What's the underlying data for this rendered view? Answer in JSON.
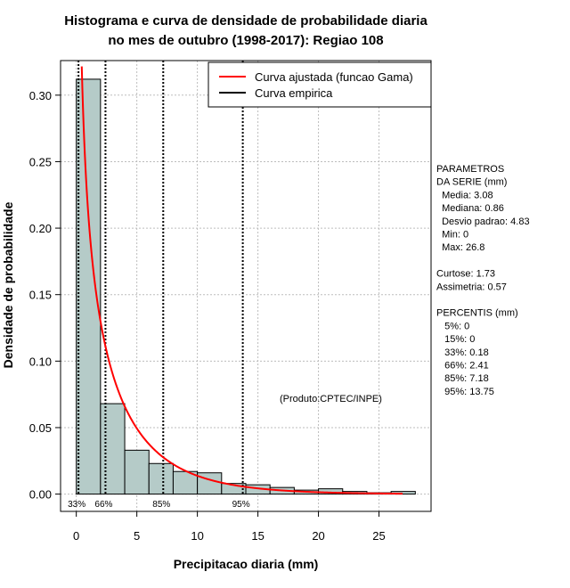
{
  "chart_data": {
    "type": "bar",
    "title": [
      "Histograma e curva de densidade de probabilidade diaria",
      "no mes de outubro (1998-2017): Regiao 108"
    ],
    "xlabel": "Precipitacao diaria (mm)",
    "ylabel": "Densidade de probabilidade",
    "xlim": [
      -1.3,
      29.3
    ],
    "ylim": [
      -0.013,
      0.326
    ],
    "xticks": [
      0,
      5,
      10,
      15,
      20,
      25
    ],
    "yticks": [
      0.0,
      0.05,
      0.1,
      0.15,
      0.2,
      0.25,
      0.3
    ],
    "ytick_labels": [
      "0.00",
      "0.05",
      "0.10",
      "0.15",
      "0.20",
      "0.25",
      "0.30"
    ],
    "grid": true,
    "bin_width": 2,
    "bins": [
      {
        "start": 0,
        "end": 2,
        "density": 0.312
      },
      {
        "start": 2,
        "end": 4,
        "density": 0.068
      },
      {
        "start": 4,
        "end": 6,
        "density": 0.033
      },
      {
        "start": 6,
        "end": 8,
        "density": 0.023
      },
      {
        "start": 8,
        "end": 10,
        "density": 0.017
      },
      {
        "start": 10,
        "end": 12,
        "density": 0.016
      },
      {
        "start": 12,
        "end": 14,
        "density": 0.008
      },
      {
        "start": 14,
        "end": 16,
        "density": 0.007
      },
      {
        "start": 16,
        "end": 18,
        "density": 0.005
      },
      {
        "start": 18,
        "end": 20,
        "density": 0.003
      },
      {
        "start": 20,
        "end": 22,
        "density": 0.004
      },
      {
        "start": 22,
        "end": 24,
        "density": 0.002
      },
      {
        "start": 24,
        "end": 26,
        "density": 0.001
      },
      {
        "start": 26,
        "end": 28,
        "density": 0.002
      }
    ],
    "fitted_curve": {
      "name": "Curva ajustada (funcao Gama)",
      "color": "#ff0000",
      "gamma_shape": 0.6,
      "gamma_rate": 0.2,
      "x_range": [
        0.1,
        27
      ]
    },
    "empirical_curve": {
      "name": "Curva empirica",
      "color": "#000000"
    },
    "bar_fill": "#b5cbc8",
    "percentile_lines": [
      {
        "label": "33%",
        "value": 0.18
      },
      {
        "label": "66%",
        "value": 2.41
      },
      {
        "label": "85%",
        "value": 7.18
      },
      {
        "label": "95%",
        "value": 13.75
      }
    ],
    "legend_position": "top-right",
    "annotation": "(Produto:CPTEC/INPE)"
  },
  "side_panel": {
    "lines": [
      "PARAMETROS",
      "DA SERIE (mm)",
      "  Media: 3.08",
      "  Mediana: 0.86",
      "  Desvio padrao: 4.83",
      "  Min: 0",
      "  Max: 26.8",
      "",
      "Curtose: 1.73",
      "Assimetria: 0.57",
      "",
      "PERCENTIS (mm)",
      "   5%: 0",
      "   15%: 0",
      "   33%: 0.18",
      "   66%: 2.41",
      "   85%: 7.18",
      "   95%: 13.75"
    ]
  }
}
